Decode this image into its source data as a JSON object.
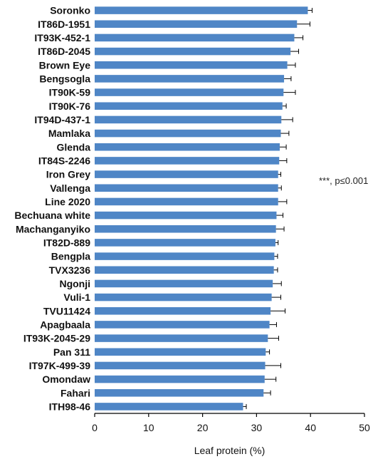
{
  "chart_data": {
    "type": "bar",
    "orientation": "horizontal",
    "categories": [
      "Soronko",
      "IT86D-1951",
      "IT93K-452-1",
      "IT86D-2045",
      "Brown Eye",
      "Bengsogla",
      "IT90K-59",
      "IT90K-76",
      "IT94D-437-1",
      "Mamlaka",
      "Glenda",
      "IT84S-2246",
      "Iron Grey",
      "Vallenga",
      "Line 2020",
      "Bechuana white",
      "Machanganyiko",
      "IT82D-889",
      "Bengpla",
      "TVX3236",
      "Ngonji",
      "Vuli-1",
      "TVU11424",
      "Apagbaala",
      "IT93K-2045-29",
      "Pan 311",
      "IT97K-499-39",
      "Omondaw",
      "Fahari",
      "ITH98-46"
    ],
    "series": [
      {
        "values": [
          39.5,
          37.5,
          37.0,
          36.3,
          35.7,
          35.1,
          35.0,
          34.8,
          34.6,
          34.5,
          34.3,
          34.2,
          34.0,
          34.0,
          34.0,
          33.7,
          33.6,
          33.5,
          33.3,
          33.2,
          33.0,
          32.8,
          32.6,
          32.4,
          32.1,
          31.7,
          31.6,
          31.5,
          31.3,
          27.5
        ],
        "errors": [
          0.8,
          2.4,
          1.6,
          1.5,
          1.5,
          1.3,
          2.2,
          0.7,
          2.1,
          1.5,
          1.2,
          1.4,
          0.5,
          0.6,
          1.6,
          1.2,
          1.5,
          0.5,
          0.6,
          0.7,
          1.6,
          1.7,
          2.7,
          1.3,
          2.0,
          0.7,
          2.9,
          2.1,
          1.3,
          0.6
        ],
        "color": "#4f86c6"
      }
    ],
    "xlabel": "Leaf protein (%)",
    "ylabel": "",
    "xlim": [
      0,
      50
    ],
    "xticks": [
      "0",
      "10",
      "20",
      "30",
      "40",
      "50"
    ],
    "grid": false,
    "annotation": "***, p≤0.001"
  }
}
